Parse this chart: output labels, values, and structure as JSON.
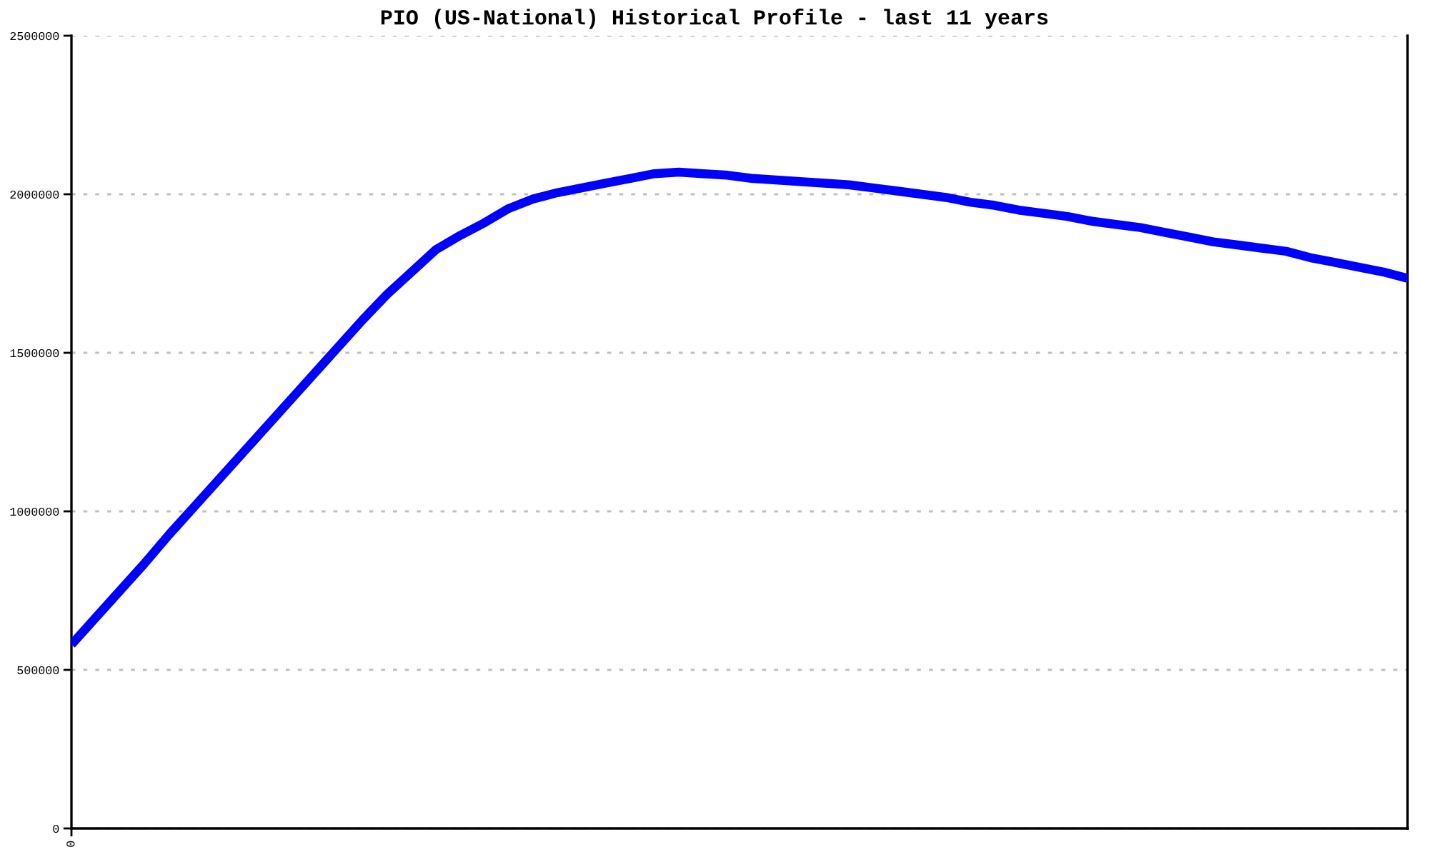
{
  "chart_data": {
    "type": "line",
    "title": "PIO (US-National) Historical Profile - last 11 years",
    "categories": [
      "0",
      null,
      null,
      null,
      null,
      null,
      null,
      null,
      null,
      null,
      null,
      null,
      null,
      null,
      null,
      null,
      null,
      null,
      null,
      null,
      null,
      null,
      null,
      null,
      null,
      null,
      null,
      null,
      null,
      null,
      null,
      null,
      null,
      null,
      null,
      null,
      null,
      null,
      null,
      null,
      null,
      null,
      null,
      null,
      null,
      null,
      null,
      null,
      null,
      null,
      null,
      null,
      null,
      null,
      null,
      null
    ],
    "series": [
      {
        "color": "#0000ff",
        "values": [
          580000,
          665000,
          750000,
          835000,
          925000,
          1010000,
          1095000,
          1180000,
          1265000,
          1350000,
          1435000,
          1520000,
          1605000,
          1685000,
          1755000,
          1825000,
          1870000,
          1910000,
          1955000,
          1985000,
          2005000,
          2020000,
          2035000,
          2050000,
          2065000,
          2070000,
          2065000,
          2060000,
          2050000,
          2045000,
          2040000,
          2035000,
          2030000,
          2020000,
          2010000,
          2000000,
          1990000,
          1975000,
          1965000,
          1950000,
          1940000,
          1930000,
          1915000,
          1905000,
          1895000,
          1880000,
          1865000,
          1850000,
          1840000,
          1830000,
          1820000,
          1800000,
          1785000,
          1770000,
          1755000,
          1735000
        ]
      }
    ],
    "ylim": [
      0,
      2500000
    ],
    "yticks": [
      0,
      500000,
      1000000,
      1500000,
      2000000,
      2500000
    ],
    "grid": "y",
    "line_style": "solid"
  }
}
